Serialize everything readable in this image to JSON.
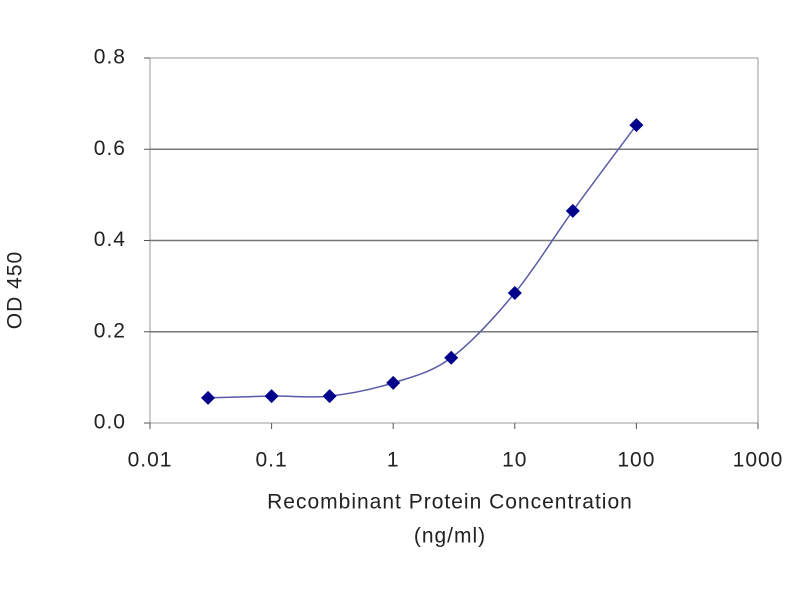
{
  "chart_data": {
    "type": "line",
    "y_label": "OD 450",
    "x_label": "Recombinant Protein Concentration",
    "x_label_unit": "(ng/ml)",
    "x": [
      0.03,
      0.1,
      0.3,
      1,
      3,
      10,
      30,
      100
    ],
    "series": [
      {
        "color": "#00008b",
        "line_color": "#5a5aa8",
        "values": [
          0.055,
          0.059,
          0.059,
          0.088,
          0.143,
          0.285,
          0.465,
          0.653
        ]
      }
    ],
    "xlim": [
      0.01,
      1000
    ],
    "xticks": [
      0.01,
      0.1,
      1,
      10,
      100,
      1000
    ],
    "xscale": "log",
    "ylim": [
      0,
      0.8
    ],
    "yticks": [
      {
        "value": 0,
        "label": "0.0"
      },
      0.2,
      0.4,
      0.6,
      0.8
    ],
    "grid": true
  }
}
